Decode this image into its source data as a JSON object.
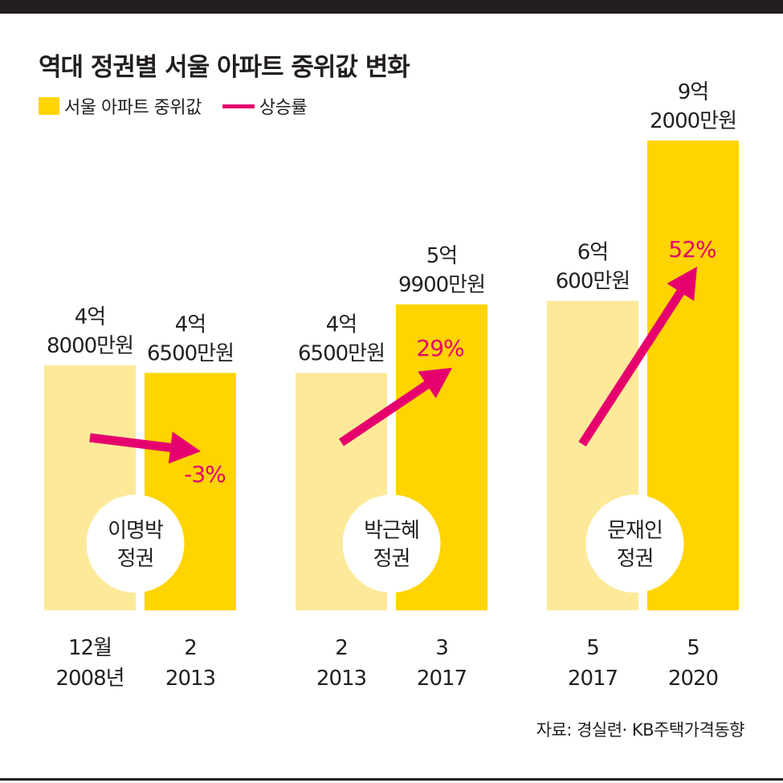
{
  "title": "역대 정권별 서울 아파트 중위값 변화",
  "legend": {
    "bar_label": "서울 아파트 중위값",
    "line_label": "상승률"
  },
  "source": "자료: 경실련· KB주택가격동향",
  "colors": {
    "bar_before": "#fde99a",
    "bar_after": "#ffd400",
    "arrow": "#e6006e",
    "circle": "#ffffff",
    "topbar": "#231f20"
  },
  "chart_data": {
    "type": "bar",
    "title": "역대 정권별 서울 아파트 중위값 변화",
    "unit": "억원",
    "groups": [
      {
        "name": "이명박 정권",
        "name_lines": [
          "이명박",
          "정권"
        ],
        "change_label": "-3%",
        "change": -3,
        "bars": [
          {
            "time_lines": [
              "12월",
              "2008년"
            ],
            "value": 4.8,
            "label_lines": [
              "4억",
              "8000만원"
            ]
          },
          {
            "time_lines": [
              "2",
              "2013"
            ],
            "value": 4.65,
            "label_lines": [
              "4억",
              "6500만원"
            ]
          }
        ]
      },
      {
        "name": "박근혜 정권",
        "name_lines": [
          "박근혜",
          "정권"
        ],
        "change_label": "29%",
        "change": 29,
        "bars": [
          {
            "time_lines": [
              "2",
              "2013"
            ],
            "value": 4.65,
            "label_lines": [
              "4억",
              "6500만원"
            ]
          },
          {
            "time_lines": [
              "3",
              "2017"
            ],
            "value": 5.99,
            "label_lines": [
              "5억",
              "9900만원"
            ]
          }
        ]
      },
      {
        "name": "문재인 정권",
        "name_lines": [
          "문재인",
          "정권"
        ],
        "change_label": "52%",
        "change": 52,
        "bars": [
          {
            "time_lines": [
              "5",
              "2017"
            ],
            "value": 6.06,
            "label_lines": [
              "6억",
              "600만원"
            ]
          },
          {
            "time_lines": [
              "5",
              "2020"
            ],
            "value": 9.2,
            "label_lines": [
              "9억",
              "2000만원"
            ]
          }
        ]
      }
    ]
  }
}
